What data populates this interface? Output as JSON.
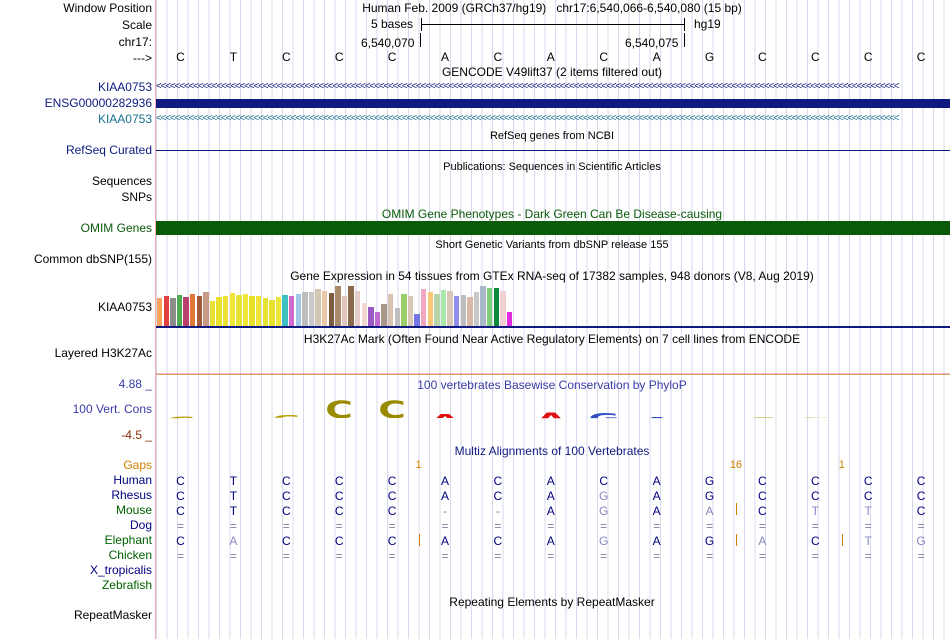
{
  "header": {
    "window_position_label": "Window Position",
    "scale_label": "Scale",
    "chrom_label": "chr17:",
    "arrow_label": "--->",
    "assembly_text": "Human Feb. 2009 (GRCh37/hg19)",
    "range_text": "chr17:6,540,066-6,540,080 (15 bp)",
    "scale_text": "5 bases",
    "db_text": "hg19",
    "pos_left": "6,540,070",
    "pos_right": "6,540,075"
  },
  "sequence": [
    "C",
    "T",
    "C",
    "C",
    "C",
    "A",
    "C",
    "A",
    "C",
    "A",
    "G",
    "C",
    "C",
    "C",
    "C"
  ],
  "tracks": {
    "gencode": {
      "title": "GENCODE V49lift37 (2 items filtered out)",
      "items": [
        "KIAA0753",
        "ENSG00000282936",
        "KIAA0753"
      ]
    },
    "refseq": {
      "title": "RefSeq genes from NCBI",
      "label": "RefSeq Curated"
    },
    "publications": {
      "title": "Publications: Sequences in Scientific Articles",
      "labels": [
        "Sequences",
        "SNPs"
      ]
    },
    "omim": {
      "title": "OMIM Gene Phenotypes - Dark Green Can Be Disease-causing",
      "label": "OMIM Genes"
    },
    "dbsnp": {
      "title": "Short Genetic Variants from dbSNP release 155",
      "label": "Common dbSNP(155)"
    },
    "gtex": {
      "title": "Gene Expression in 54 tissues from GTEx RNA-seq of 17382 samples, 948 donors (V8, Aug 2019)",
      "label": "KIAA0753"
    },
    "h3k27ac": {
      "title": "H3K27Ac Mark (Often Found Near Active Regulatory Elements) on 7 cell lines from ENCODE",
      "label": "Layered H3K27Ac"
    },
    "cons": {
      "title": "100 vertebrates Basewise Conservation by PhyloP",
      "label": "100 Vert. Cons",
      "max": "4.88 _",
      "min": "-4.5 _"
    },
    "multiz": {
      "title": "Multiz Alignments of 100 Vertebrates",
      "gaps_label": "Gaps",
      "gap_marks": [
        {
          "text": "1",
          "col": 4.5
        },
        {
          "text": "16",
          "col": 10.5
        },
        {
          "text": "1",
          "col": 12.5
        }
      ],
      "species": [
        {
          "name": "Human",
          "color": "#000080",
          "seq": "CTCCCACACAGCCCC"
        },
        {
          "name": "Rhesus",
          "color": "#000080",
          "seq": "CTCCCACAGAGCCCC"
        },
        {
          "name": "Mouse",
          "color": "#006000",
          "seq": "CTCCC--AGAACTTC"
        },
        {
          "name": "Dog",
          "color": "#000080",
          "seq": "==============="
        },
        {
          "name": "Elephant",
          "color": "#006000",
          "seq": "CACCCACAGAGACTG"
        },
        {
          "name": "Chicken",
          "color": "#006000",
          "seq": "==============="
        },
        {
          "name": "X_tropicalis",
          "color": "#000080",
          "seq": ""
        },
        {
          "name": "Zebrafish",
          "color": "#006000",
          "seq": ""
        }
      ]
    },
    "repeatmasker": {
      "title": "Repeating Elements by RepeatMasker",
      "label": "RepeatMasker"
    }
  },
  "gtex_bars": [
    {
      "c": "#f7a45a",
      "v": 0.7
    },
    {
      "c": "#e0413e",
      "v": 0.74
    },
    {
      "c": "#8c8c8c",
      "v": 0.7
    },
    {
      "c": "#4fa84f",
      "v": 0.78
    },
    {
      "c": "#b9426a",
      "v": 0.72
    },
    {
      "c": "#e07a3a",
      "v": 0.8
    },
    {
      "c": "#a35a3a",
      "v": 0.76
    },
    {
      "c": "#c79a88",
      "v": 0.86
    },
    {
      "c": "#e6e233",
      "v": 0.62
    },
    {
      "c": "#e9e02c",
      "v": 0.72
    },
    {
      "c": "#ede134",
      "v": 0.76
    },
    {
      "c": "#eee538",
      "v": 0.82
    },
    {
      "c": "#e6e233",
      "v": 0.78
    },
    {
      "c": "#efe63a",
      "v": 0.8
    },
    {
      "c": "#e9e02c",
      "v": 0.76
    },
    {
      "c": "#eee538",
      "v": 0.74
    },
    {
      "c": "#e6e233",
      "v": 0.7
    },
    {
      "c": "#e9e02c",
      "v": 0.66
    },
    {
      "c": "#efe63a",
      "v": 0.72
    },
    {
      "c": "#3cc0c0",
      "v": 0.78
    },
    {
      "c": "#d16ad0",
      "v": 0.76
    },
    {
      "c": "#a2c8e8",
      "v": 0.8
    },
    {
      "c": "#bdbdbd",
      "v": 0.86
    },
    {
      "c": "#c8c8c8",
      "v": 0.84
    },
    {
      "c": "#d3c7b3",
      "v": 0.92
    },
    {
      "c": "#e8c8a8",
      "v": 0.88
    },
    {
      "c": "#7c5c3e",
      "v": 0.82
    },
    {
      "c": "#a88a6a",
      "v": 1.0
    },
    {
      "c": "#e0c6bd",
      "v": 0.76
    },
    {
      "c": "#8a6a4a",
      "v": 1.0
    },
    {
      "c": "#e3cdc6",
      "v": 0.88
    },
    {
      "c": "#f0d8d0",
      "v": 0.58
    },
    {
      "c": "#9b59c6",
      "v": 0.48
    },
    {
      "c": "#c06ad0",
      "v": 0.36
    },
    {
      "c": "#a99888",
      "v": 0.56
    },
    {
      "c": "#d8c4b0",
      "v": 0.8
    },
    {
      "c": "#bfbfbf",
      "v": 0.46
    },
    {
      "c": "#9ad06a",
      "v": 0.8
    },
    {
      "c": "#d8c8b8",
      "v": 0.74
    },
    {
      "c": "#7575e5",
      "v": 0.3
    },
    {
      "c": "#f0a8c0",
      "v": 0.92
    },
    {
      "c": "#f8c878",
      "v": 0.86
    },
    {
      "c": "#b8d4a8",
      "v": 0.8
    },
    {
      "c": "#a8e8a8",
      "v": 0.9
    },
    {
      "c": "#d8c8b8",
      "v": 0.88
    },
    {
      "c": "#9090e8",
      "v": 0.74
    },
    {
      "c": "#bdbdbd",
      "v": 0.78
    },
    {
      "c": "#d8b8a8",
      "v": 0.72
    },
    {
      "c": "#c8c8c8",
      "v": 0.86
    },
    {
      "c": "#a8b8c8",
      "v": 1.0
    },
    {
      "c": "#7ad07a",
      "v": 0.94
    },
    {
      "c": "#0a8a3a",
      "v": 0.94
    },
    {
      "c": "#f0d0d0",
      "v": 0.88
    },
    {
      "c": "#e02be0",
      "v": 0.34
    }
  ],
  "cons_glyphs": [
    {
      "t": "C",
      "color": "#b4a000",
      "h": 0.35
    },
    {
      "t": "",
      "color": "#b4a000",
      "h": 0.0
    },
    {
      "t": "C",
      "color": "#b4a000",
      "h": 0.4
    },
    {
      "t": "C",
      "color": "#9a8a00",
      "h": 1.0
    },
    {
      "t": "C",
      "color": "#9a8a00",
      "h": 1.0
    },
    {
      "t": "A",
      "color": "#e01010",
      "h": 0.5
    },
    {
      "t": "",
      "color": "#e01010",
      "h": 0.0
    },
    {
      "t": "A",
      "color": "#e01010",
      "h": 0.6
    },
    {
      "t": "G",
      "color": "#3050c0",
      "h": 0.55
    },
    {
      "t": "A",
      "color": "#3050c0",
      "h": 0.3
    },
    {
      "t": "",
      "color": "#b4a000",
      "h": 0.0
    },
    {
      "t": "C",
      "color": "#c8c060",
      "h": 0.2
    },
    {
      "t": "C",
      "color": "#c8c060",
      "h": 0.15
    },
    {
      "t": "",
      "color": "#b4a000",
      "h": 0.0
    },
    {
      "t": "",
      "color": "#b4a000",
      "h": 0.0
    }
  ],
  "colors": {
    "navy": "#0e1a80",
    "teal": "#1a7090",
    "omim_green": "#0a5a0a",
    "cons_blue": "#3a3aa8",
    "gaps_orange": "#d08000",
    "h3_orange": "#e0a060"
  }
}
